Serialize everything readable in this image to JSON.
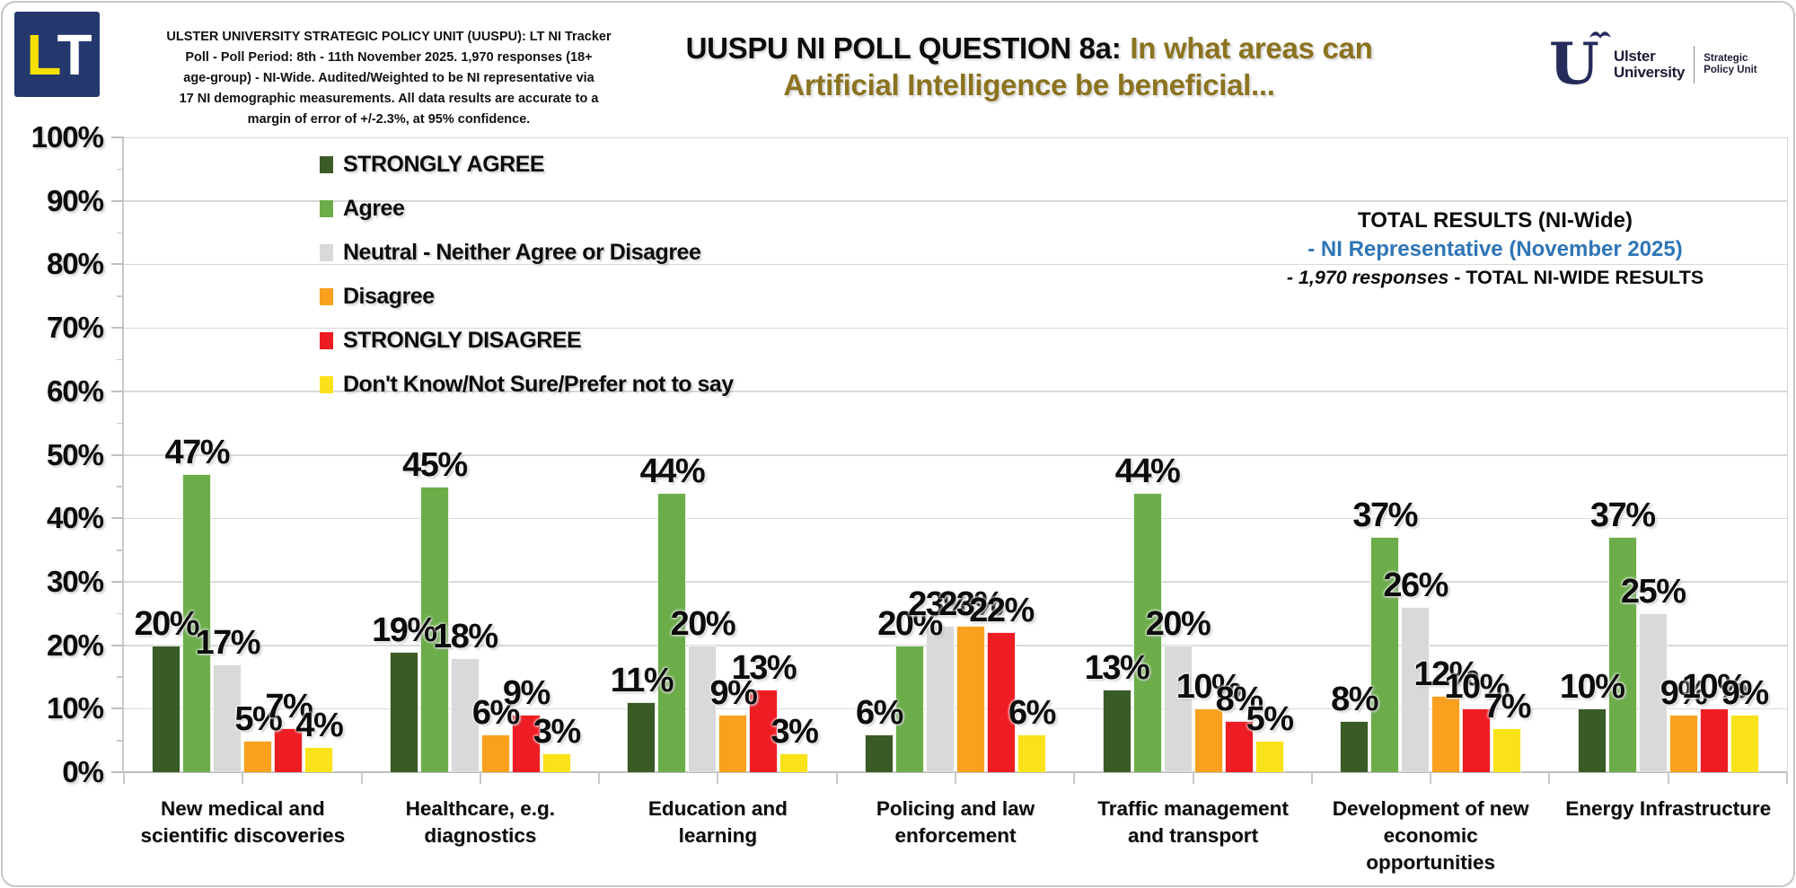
{
  "header": {
    "logo_l": "L",
    "logo_t": "T",
    "poll_info_lines": [
      "ULSTER UNIVERSITY STRATEGIC POLICY UNIT (UUSPU): LT NI Tracker",
      "Poll - Poll Period: 8th - 11th November 2025. 1,970 responses (18+",
      "age-group) - NI-Wide. Audited/Weighted to be NI representative via",
      "17 NI demographic measurements. All data results are accurate to a",
      "margin of error of +/-2.3%, at 95% confidence."
    ],
    "title_black": "UUSPU NI POLL QUESTION 8a:",
    "title_gold_line1": "In what areas can",
    "title_gold_line2": "Artificial Intelligence be beneficial...",
    "brand": {
      "mark": "U",
      "uni_line1": "Ulster",
      "uni_line2": "University",
      "unit_line1": "Strategic",
      "unit_line2": "Policy Unit"
    }
  },
  "results_note": {
    "line1": "TOTAL RESULTS (NI-Wide)",
    "line2": "- NI Representative (November 2025)",
    "line3_em": "- 1,970 responses",
    "line3_rest": " - TOTAL NI-WIDE RESULTS"
  },
  "colors": {
    "gold_accent": "#8B7320",
    "blue_accent": "#2E75B6",
    "navy": "#24386E",
    "grid": "#D9D9D9",
    "axis": "#BFBFBF"
  },
  "chart_data": {
    "type": "bar",
    "title": "UUSPU NI POLL QUESTION 8a: In what areas can Artificial Intelligence be beneficial...",
    "xlabel": "",
    "ylabel": "",
    "ylim": [
      0,
      100
    ],
    "ytick_step_percent": 10,
    "grid": "horizontal-major",
    "legend_position": "inside-top-left",
    "value_suffix": "%",
    "yticks": [
      "0%",
      "10%",
      "20%",
      "30%",
      "40%",
      "50%",
      "60%",
      "70%",
      "80%",
      "90%",
      "100%"
    ],
    "categories": [
      "New medical and\nscientific discoveries",
      "Healthcare, e.g.\ndiagnostics",
      "Education and\nlearning",
      "Policing and law\nenforcement",
      "Traffic management\nand transport",
      "Development of new\neconomic\nopportunities",
      "Energy Infrastructure"
    ],
    "series": [
      {
        "name": "STRONGLY AGREE",
        "color": "#3A5A26",
        "values": [
          20,
          19,
          11,
          6,
          13,
          8,
          10
        ]
      },
      {
        "name": "Agree",
        "color": "#6CAD4A",
        "values": [
          47,
          45,
          44,
          20,
          44,
          37,
          37
        ]
      },
      {
        "name": "Neutral - Neither Agree or Disagree",
        "color": "#D9D9D9",
        "values": [
          17,
          18,
          20,
          23,
          20,
          26,
          25
        ]
      },
      {
        "name": "Disagree",
        "color": "#F9A11E",
        "values": [
          5,
          6,
          9,
          23,
          10,
          12,
          9
        ]
      },
      {
        "name": "STRONGLY DISAGREE",
        "color": "#EE1C23",
        "values": [
          7,
          9,
          13,
          22,
          8,
          10,
          10
        ]
      },
      {
        "name": "Don't Know/Not Sure/Prefer not to say",
        "color": "#F9E21A",
        "values": [
          4,
          3,
          3,
          6,
          5,
          7,
          9
        ]
      }
    ]
  }
}
